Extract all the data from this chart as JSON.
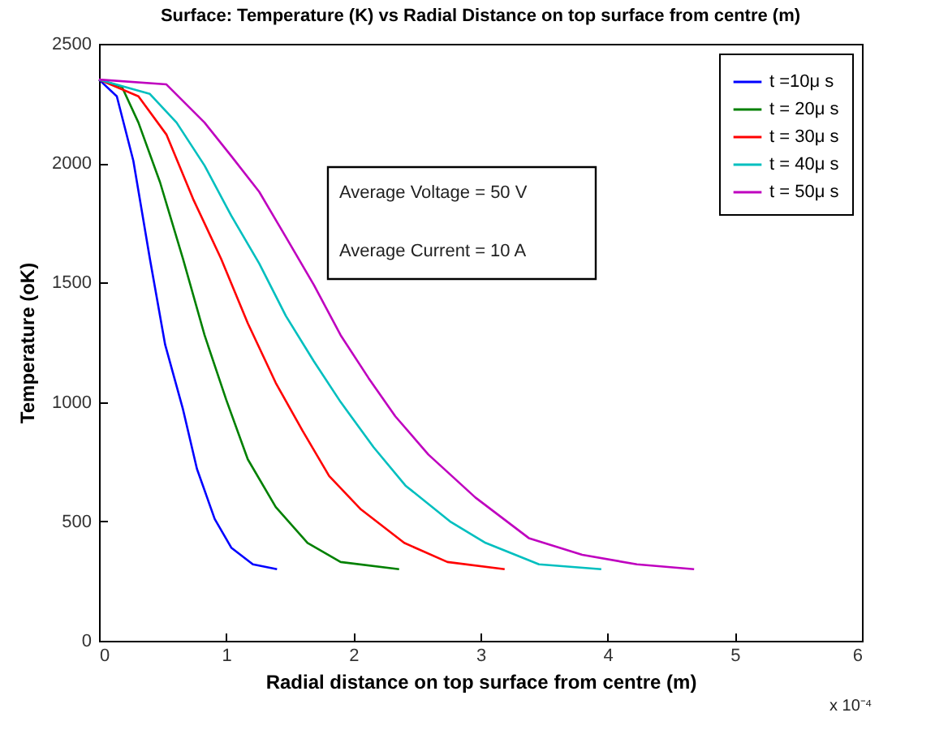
{
  "chart_data": {
    "type": "line",
    "title": "Surface: Temperature (K) vs Radial Distance on top surface from centre (m)",
    "xlabel": "Radial distance on top surface from centre (m)",
    "ylabel": "Temperature (oK)",
    "xlim": [
      0,
      6
    ],
    "xticks": [
      0,
      1,
      2,
      3,
      4,
      5,
      6
    ],
    "ylim": [
      0,
      2500
    ],
    "yticks": [
      0,
      500,
      1000,
      1500,
      2000,
      2500
    ],
    "legend": "top right",
    "annotations": [
      "Average Voltage = 50 V",
      "Average Current = 10 A",
      "x 10⁻⁴"
    ],
    "series": [
      {
        "name": "t =10μ s",
        "color": "#0000ff",
        "x": [
          0,
          0.14,
          0.27,
          0.4,
          0.52,
          0.66,
          0.77,
          0.91,
          1.04,
          1.21,
          1.4
        ],
        "values": [
          2350,
          2280,
          2010,
          1600,
          1240,
          970,
          720,
          510,
          390,
          320,
          300
        ]
      },
      {
        "name": "t = 20μ s",
        "color": "#008000",
        "x": [
          0,
          0.18,
          0.31,
          0.48,
          0.66,
          0.83,
          1.0,
          1.17,
          1.39,
          1.64,
          1.9,
          2.36
        ],
        "values": [
          2350,
          2320,
          2170,
          1920,
          1600,
          1280,
          1010,
          760,
          560,
          410,
          330,
          300
        ]
      },
      {
        "name": "t = 30μ s",
        "color": "#ff0000",
        "x": [
          0,
          0.31,
          0.53,
          0.74,
          0.96,
          1.17,
          1.39,
          1.6,
          1.81,
          2.06,
          2.4,
          2.74,
          3.19
        ],
        "values": [
          2350,
          2280,
          2120,
          1850,
          1600,
          1330,
          1080,
          880,
          690,
          550,
          410,
          330,
          300
        ]
      },
      {
        "name": "t = 40μ s",
        "color": "#00bfbf",
        "x": [
          0,
          0.4,
          0.61,
          0.83,
          1.04,
          1.26,
          1.47,
          1.69,
          1.9,
          2.16,
          2.41,
          2.76,
          3.04,
          3.46,
          3.95
        ],
        "values": [
          2350,
          2290,
          2170,
          1990,
          1780,
          1580,
          1360,
          1170,
          1000,
          810,
          650,
          500,
          410,
          320,
          300
        ]
      },
      {
        "name": "t = 50μ s",
        "color": "#bf00bf",
        "x": [
          0,
          0.53,
          0.83,
          1.04,
          1.26,
          1.47,
          1.69,
          1.9,
          2.12,
          2.33,
          2.59,
          2.96,
          3.38,
          3.8,
          4.23,
          4.68
        ],
        "values": [
          2350,
          2330,
          2170,
          2030,
          1880,
          1690,
          1490,
          1280,
          1100,
          940,
          780,
          600,
          430,
          360,
          320,
          300
        ]
      }
    ]
  }
}
